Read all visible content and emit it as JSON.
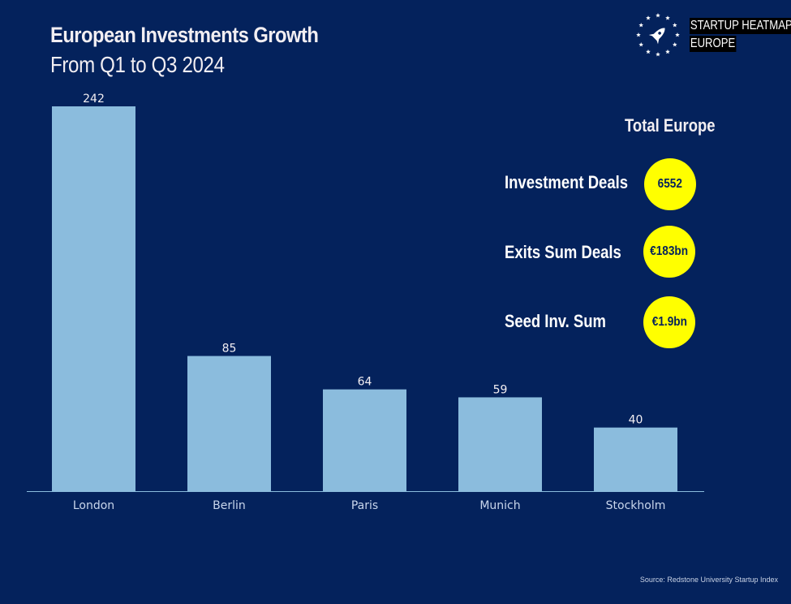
{
  "header": {
    "title": "European Investments Growth",
    "subtitle": "From Q1 to Q3 2024"
  },
  "brand": {
    "icon": "rocket-in-eu-stars-icon",
    "line1": "STARTUP HEATMAP",
    "line2": "EUROPE"
  },
  "summary": {
    "title": "Total Europe",
    "stats": [
      {
        "label": "Investment Deals",
        "value": "6552"
      },
      {
        "label": "Exits Sum Deals",
        "value": "€183bn"
      },
      {
        "label": "Seed Inv. Sum",
        "value": "€1.9bn"
      }
    ],
    "badge_color": "#ffff00"
  },
  "colors": {
    "background": "#04225c",
    "bar": "#8bbcdd",
    "text": "#f2eef2"
  },
  "source": "Source: Redstone University Startup Index",
  "chart_data": {
    "type": "bar",
    "title": "European Investments Growth",
    "subtitle": "From Q1 to Q3 2024",
    "categories": [
      "London",
      "Berlin",
      "Paris",
      "Munich",
      "Stockholm"
    ],
    "values": [
      242,
      85,
      64,
      59,
      40
    ],
    "xlabel": "",
    "ylabel": "",
    "ylim": [
      0,
      242
    ],
    "grid": false,
    "data_labels": true,
    "legend": "none"
  }
}
